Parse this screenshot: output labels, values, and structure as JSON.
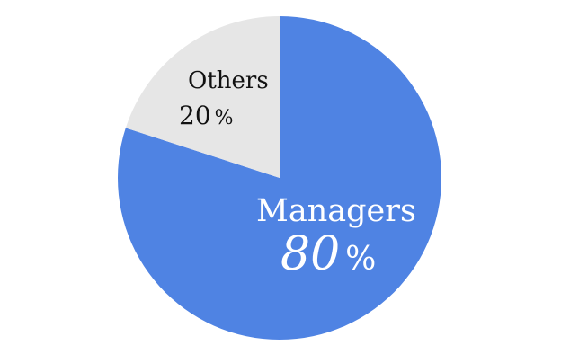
{
  "chart_data": {
    "type": "pie",
    "start_angle": "12 o'clock, counterclockwise for Others",
    "slices": [
      {
        "label": "Managers",
        "value": 80,
        "display": "80",
        "unit": "%",
        "color": "#4f83e3",
        "text_color": "#ffffff"
      },
      {
        "label": "Others",
        "value": 20,
        "display": "20",
        "unit": "%",
        "color": "#e6e6e6",
        "text_color": "#111111"
      }
    ],
    "legend": "none",
    "labels": "inside slices"
  }
}
